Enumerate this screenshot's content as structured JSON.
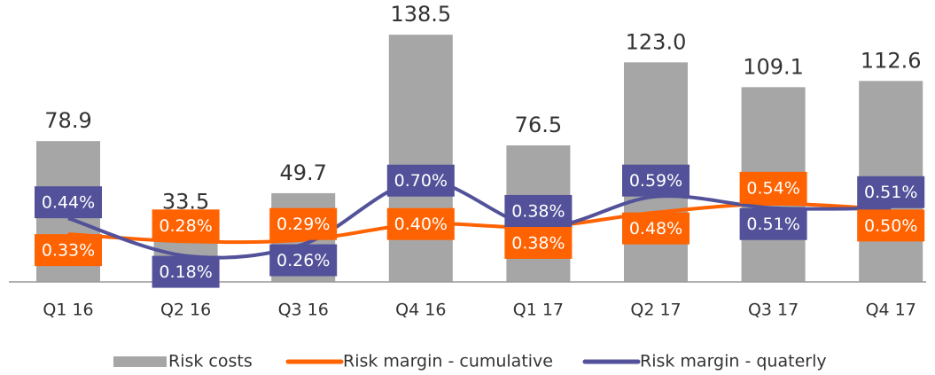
{
  "chart_data": {
    "type": "bar_line",
    "categories": [
      "Q1 16",
      "Q2 16",
      "Q3 16",
      "Q4 16",
      "Q1 17",
      "Q2 17",
      "Q3 17",
      "Q4 17"
    ],
    "series": [
      {
        "name": "Risk costs",
        "color": "#a6a6a6",
        "type": "bar",
        "values": [
          78.9,
          33.5,
          49.7,
          138.5,
          76.5,
          123.0,
          109.1,
          112.6
        ],
        "value_labels": [
          "78.9",
          "33.5",
          "49.7",
          "138.5",
          "76.5",
          "123.0",
          "109.1",
          "112.6"
        ]
      },
      {
        "name": "Risk margin - cumulative",
        "color": "#ff6200",
        "type": "line",
        "axis": "y2",
        "values": [
          0.33,
          0.28,
          0.29,
          0.4,
          0.38,
          0.48,
          0.54,
          0.5
        ],
        "value_labels": [
          "0.33%",
          "0.28%",
          "0.29%",
          "0.40%",
          "0.38%",
          "0.48%",
          "0.54%",
          "0.50%"
        ]
      },
      {
        "name": "Risk margin - quaterly",
        "color": "#525199",
        "type": "line",
        "axis": "y2",
        "values": [
          0.44,
          0.18,
          0.26,
          0.7,
          0.38,
          0.59,
          0.51,
          0.51
        ],
        "value_labels": [
          "0.44%",
          "0.18%",
          "0.26%",
          "0.70%",
          "0.38%",
          "0.59%",
          "0.51%",
          "0.51%"
        ]
      }
    ],
    "ylim": [
      0,
      150
    ],
    "y2lim": [
      0,
      1.85
    ],
    "legend": "bottom"
  }
}
